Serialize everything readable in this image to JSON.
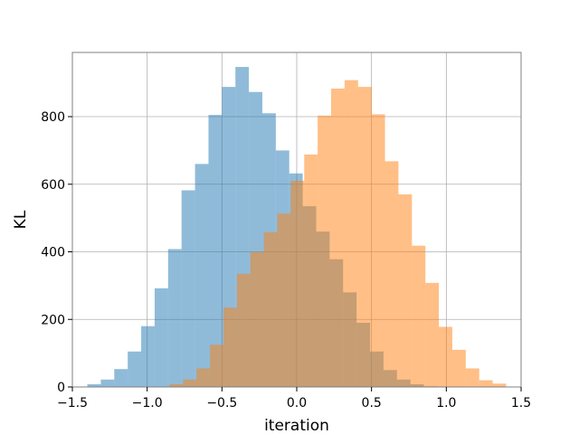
{
  "chart_data": {
    "type": "histogram",
    "title": "",
    "xlabel": "iteration",
    "ylabel": "KL",
    "xlim": [
      -1.5,
      1.5
    ],
    "ylim": [
      0,
      990
    ],
    "xticks": [
      -1.5,
      -1.0,
      -0.5,
      0.0,
      0.5,
      1.0,
      1.5
    ],
    "xtick_labels": [
      "−1.5",
      "−1.0",
      "−0.5",
      "0.0",
      "0.5",
      "1.0",
      "1.5"
    ],
    "yticks": [
      0,
      200,
      400,
      600,
      800
    ],
    "ytick_labels": [
      "0",
      "200",
      "400",
      "600",
      "800"
    ],
    "grid": true,
    "bin_width": 0.09,
    "series": [
      {
        "color": "#1f77b4",
        "opacity": 0.5,
        "bins_start": [
          -1.4,
          -1.31,
          -1.22,
          -1.13,
          -1.04,
          -0.95,
          -0.86,
          -0.77,
          -0.68,
          -0.59,
          -0.5,
          -0.41,
          -0.32,
          -0.23,
          -0.14,
          -0.05,
          0.04,
          0.13,
          0.22,
          0.31,
          0.4,
          0.49,
          0.58,
          0.67,
          0.76,
          0.85
        ],
        "counts": [
          8,
          22,
          53,
          105,
          180,
          292,
          408,
          582,
          660,
          805,
          888,
          947,
          873,
          810,
          700,
          632,
          535,
          460,
          378,
          280,
          190,
          105,
          50,
          22,
          8,
          2
        ]
      },
      {
        "color": "#ff7f0e",
        "opacity": 0.5,
        "bins_start": [
          -0.85,
          -0.76,
          -0.67,
          -0.58,
          -0.49,
          -0.4,
          -0.31,
          -0.22,
          -0.13,
          -0.04,
          0.05,
          0.14,
          0.23,
          0.32,
          0.41,
          0.5,
          0.59,
          0.68,
          0.77,
          0.86,
          0.95,
          1.04,
          1.13,
          1.22,
          1.31
        ],
        "counts": [
          8,
          22,
          55,
          125,
          235,
          335,
          400,
          458,
          513,
          610,
          688,
          803,
          883,
          908,
          888,
          807,
          668,
          570,
          418,
          308,
          178,
          110,
          55,
          20,
          10
        ]
      }
    ]
  }
}
